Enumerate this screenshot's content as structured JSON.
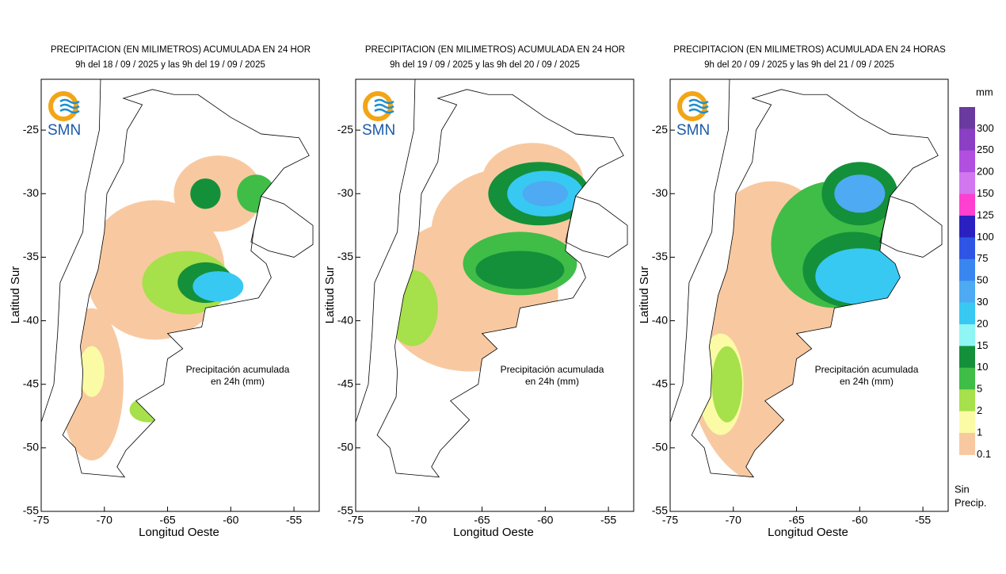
{
  "panels": [
    {
      "title": "PRECIPITACION (EN MILIMETROS) ACUMULADA EN 24 HOR",
      "subtitle": "9h del 18 / 09 / 2025  y las 9h del 19 / 09 / 2025",
      "logo": "SMN",
      "note_line1": "Precipitación acumulada",
      "note_line2": "en 24h (mm)"
    },
    {
      "title": "PRECIPITACION (EN MILIMETROS) ACUMULADA EN 24 HOR",
      "subtitle": "9h del 19 / 09 / 2025  y las 9h del 20 / 09 / 2025",
      "logo": "SMN",
      "note_line1": "Precipitación acumulada",
      "note_line2": "en 24h (mm)"
    },
    {
      "title": "PRECIPITACION (EN MILIMETROS) ACUMULADA EN 24 HORAS",
      "subtitle": "9h del 20 / 09 / 2025  y las 9h del 21 / 09 / 2025",
      "logo": "SMN",
      "note_line1": "Precipitación acumulada",
      "note_line2": "en 24h (mm)"
    }
  ],
  "axes": {
    "xlabel": "Longitud Oeste",
    "ylabel": "Latitud Sur",
    "xlim": [
      -75,
      -53
    ],
    "ylim": [
      -55,
      -21
    ],
    "xticks": [
      -75,
      -70,
      -65,
      -60,
      -55
    ],
    "yticks": [
      -25,
      -30,
      -35,
      -40,
      -45,
      -50,
      -55
    ]
  },
  "legend": {
    "title": "mm",
    "levels": [
      300,
      250,
      200,
      150,
      125,
      100,
      75,
      50,
      30,
      20,
      15,
      10,
      5,
      2,
      1,
      0.1
    ],
    "colors": [
      "#6b3a9e",
      "#8b3fc4",
      "#b14fe0",
      "#d277f0",
      "#ff3fd0",
      "#2a1fc0",
      "#2e55e6",
      "#3a86f0",
      "#4eaaf2",
      "#37c9f2",
      "#8ff5f5",
      "#14903a",
      "#3fbd47",
      "#a6e04a",
      "#fbfba6",
      "#f8c9a0"
    ],
    "none_line1": "Sin",
    "none_line2": "Precip."
  }
}
